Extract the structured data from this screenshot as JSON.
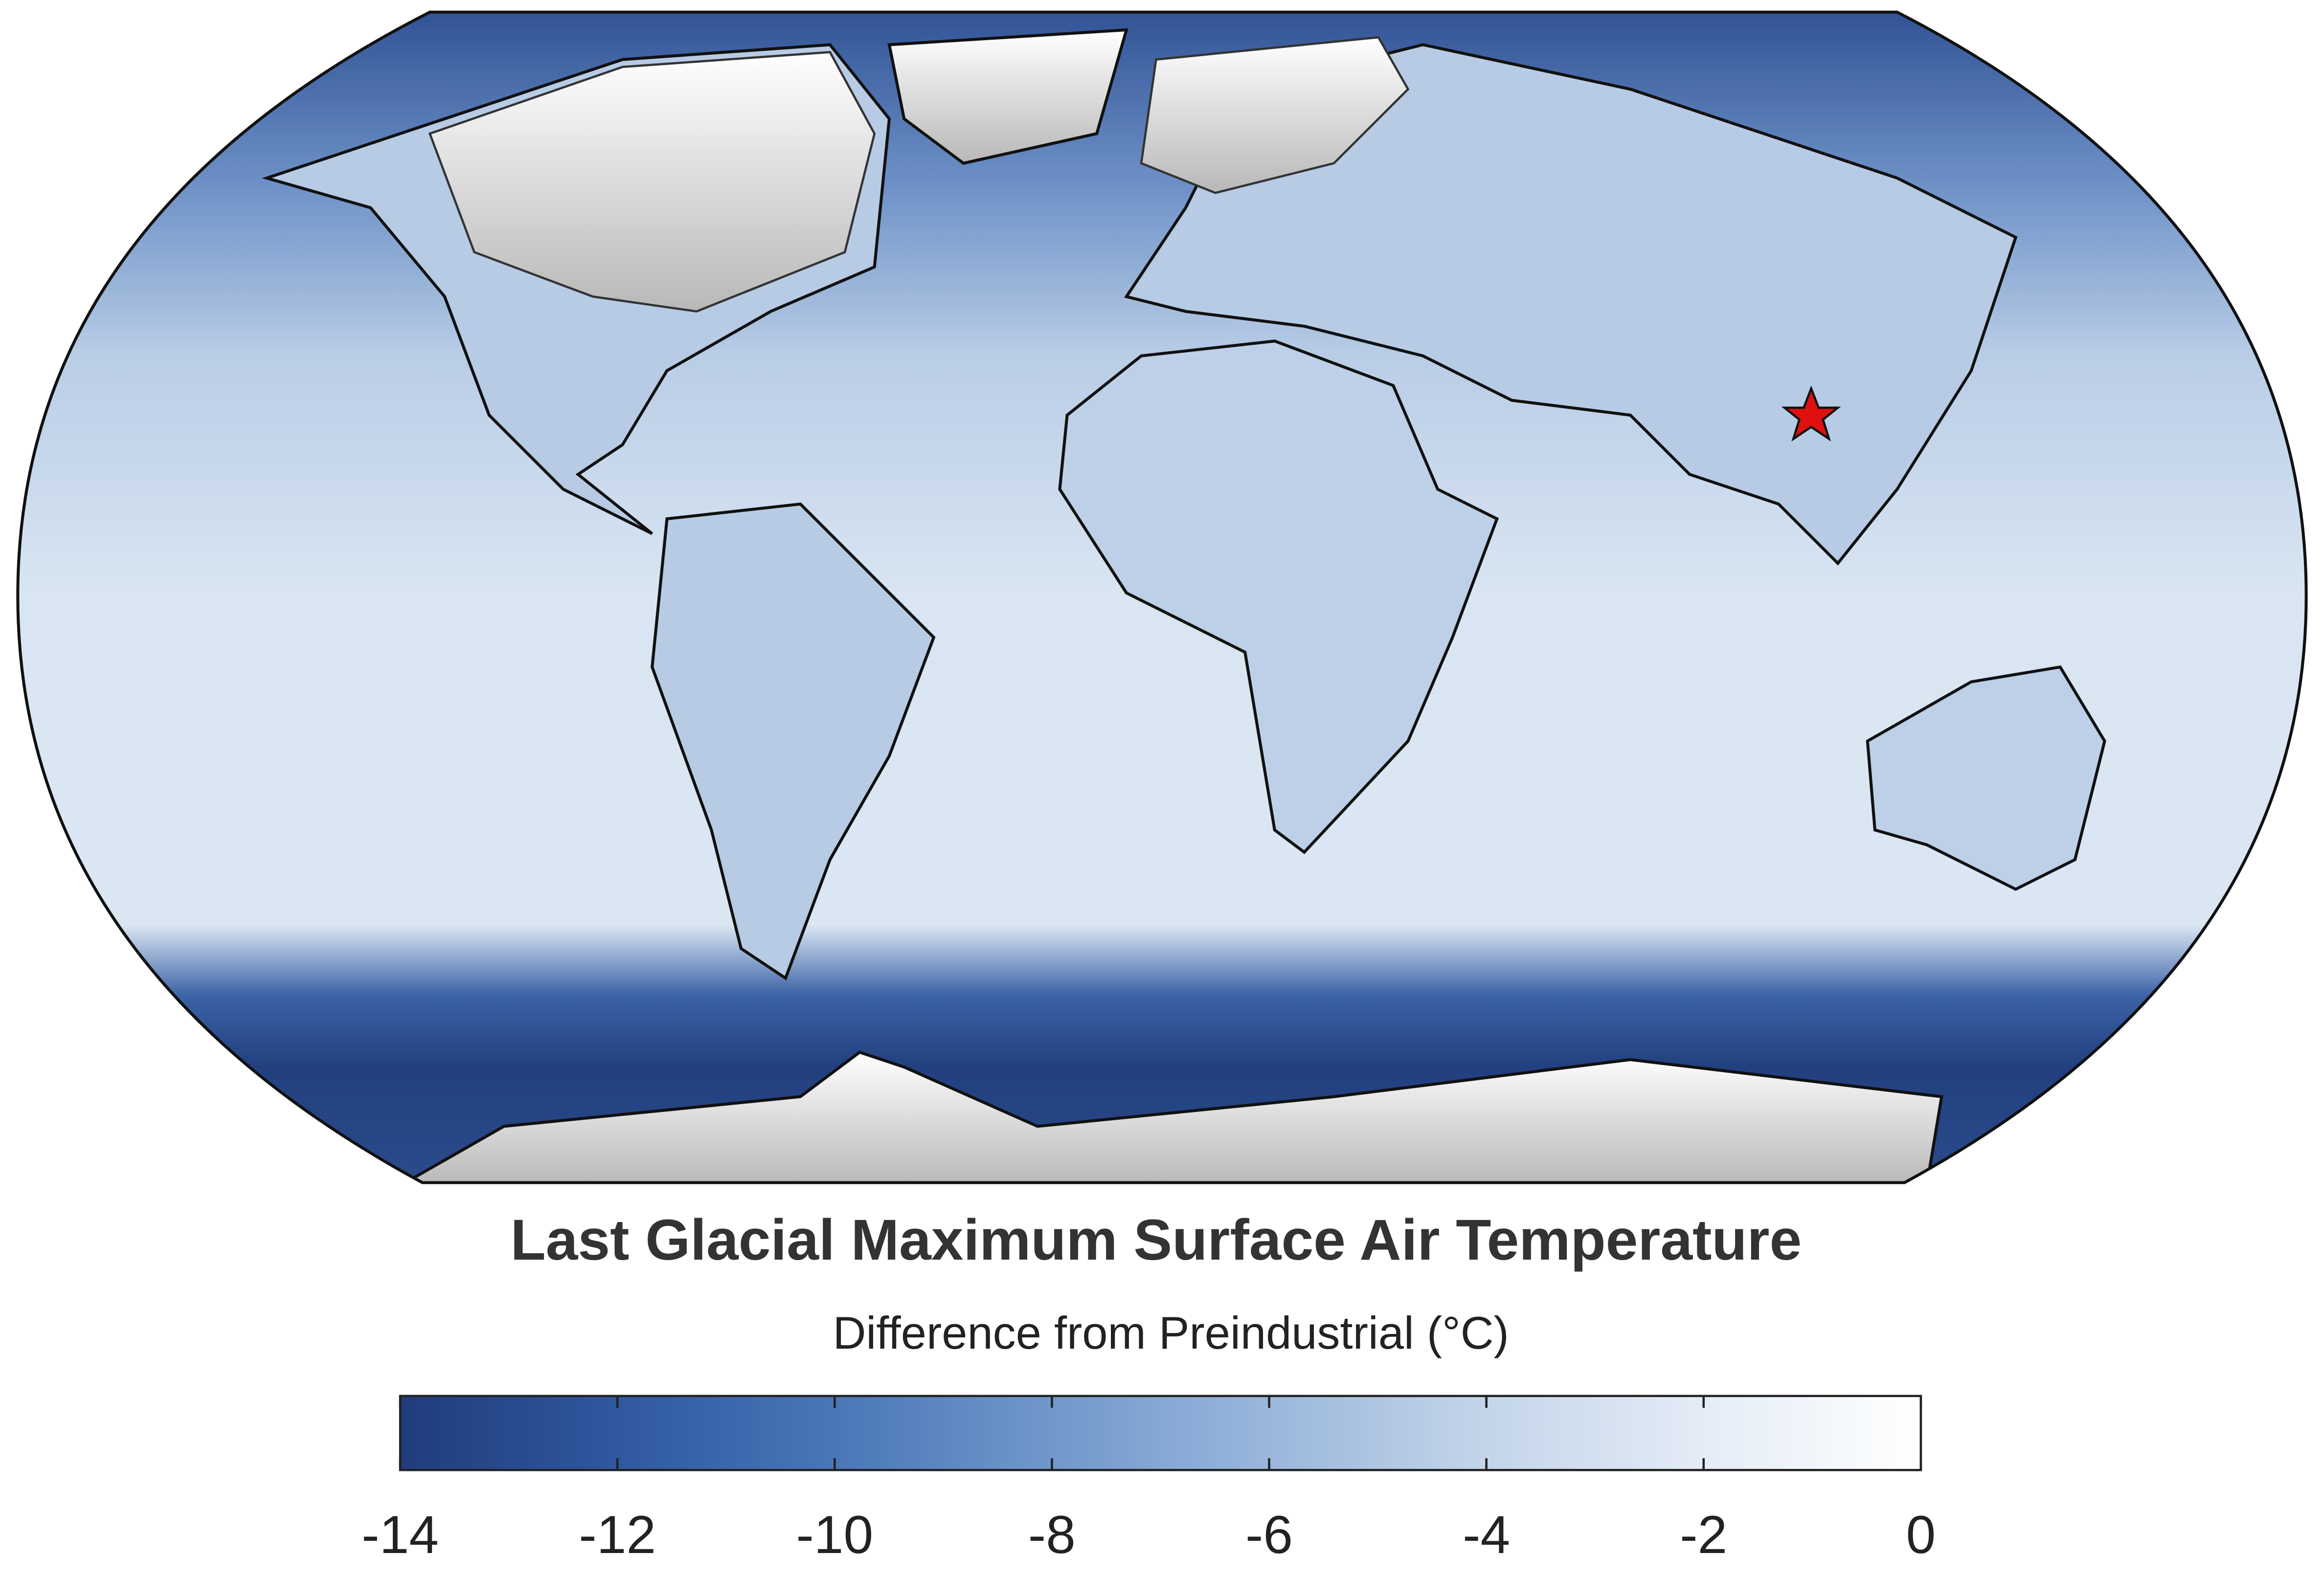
{
  "map": {
    "title": "Last Glacial Maximum Surface Air Temperature",
    "subtitle": "Difference from Preindustrial (°C)",
    "colorbar": {
      "lim": [
        -14,
        0
      ],
      "ticks": [
        -14,
        -12,
        -10,
        -8,
        -6,
        -4,
        -2,
        0
      ],
      "colors": [
        "#203c7c",
        "#2f58a0",
        "#4a76b8",
        "#7098cb",
        "#9ab7dc",
        "#c4d5ea",
        "#e4ecf6",
        "#ffffff"
      ]
    }
  }
}
